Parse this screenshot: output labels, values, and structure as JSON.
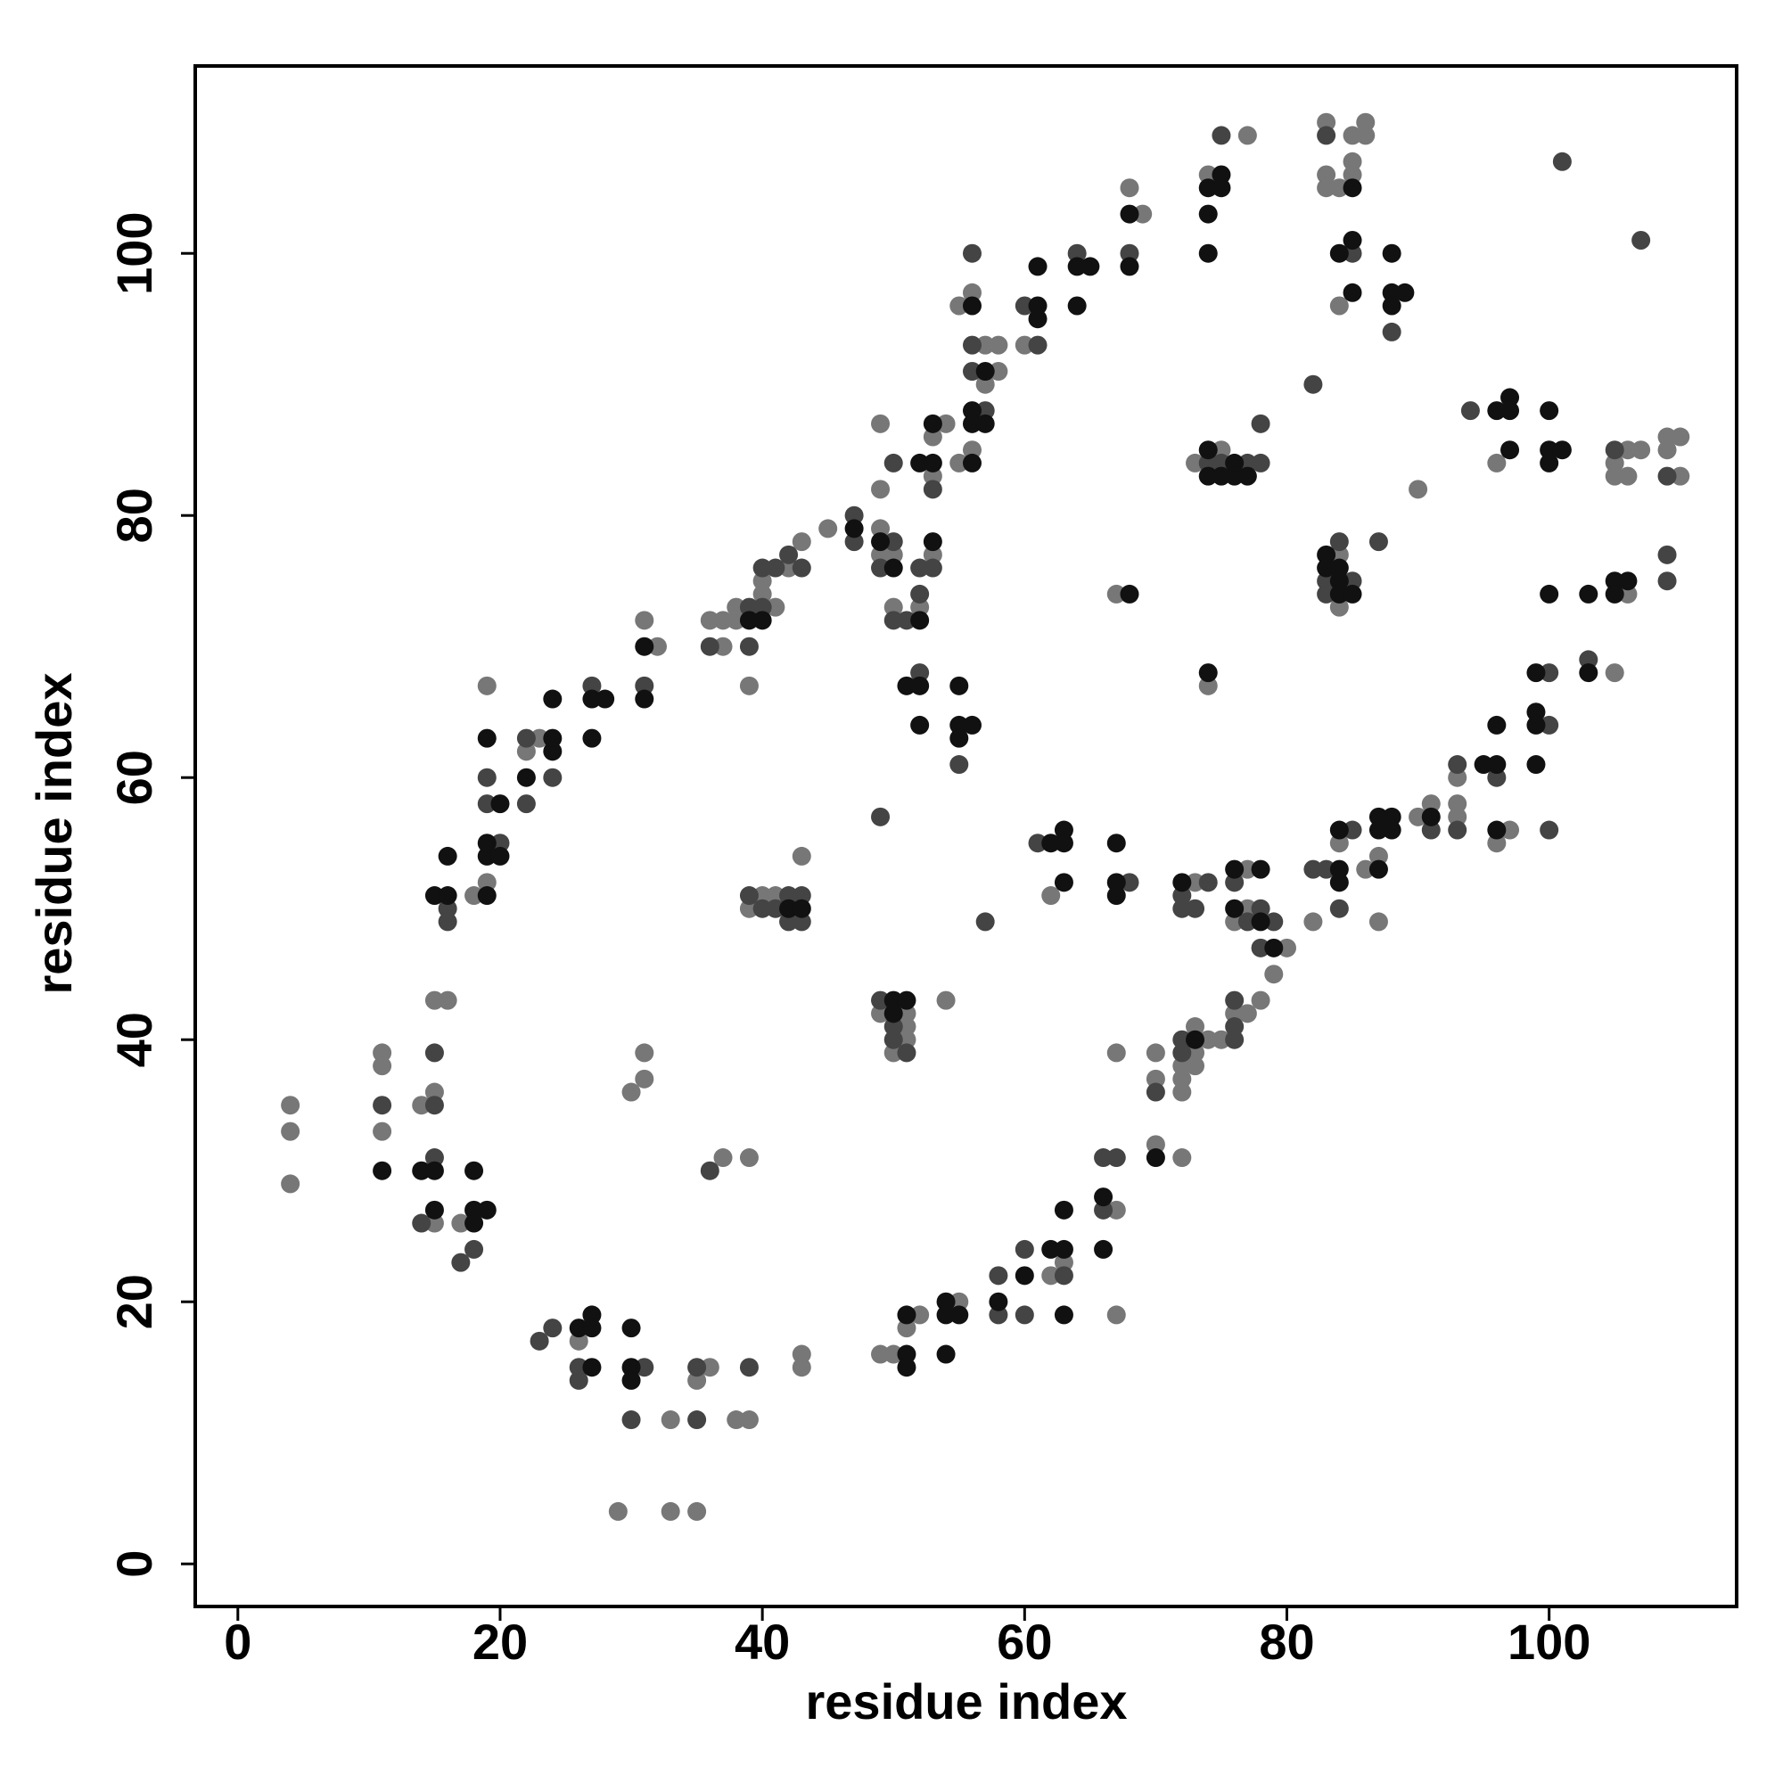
{
  "chart_data": {
    "type": "scatter",
    "x_label": "residue index",
    "y_label": "residue index",
    "xlim": [
      -3.25,
      114.3
    ],
    "ylim": [
      -3.25,
      114.3
    ],
    "xticks": [
      0,
      20,
      40,
      60,
      80,
      100
    ],
    "yticks": [
      0,
      20,
      40,
      60,
      80,
      100
    ],
    "series": [
      {
        "color": "#777777",
        "x": [
          4,
          4,
          4,
          11,
          11,
          11,
          14,
          15,
          15,
          15,
          16,
          17,
          18,
          19,
          19,
          22,
          23,
          31,
          32,
          36,
          37,
          37,
          38,
          38,
          39,
          40,
          40,
          41,
          42,
          43,
          45,
          49,
          49,
          49,
          49,
          50,
          50,
          52,
          53,
          53,
          53,
          54,
          55,
          55,
          56,
          56,
          57,
          57,
          58,
          58,
          60,
          68,
          69,
          74,
          77,
          83,
          83,
          83,
          84,
          85,
          85,
          85,
          86,
          86,
          84,
          73,
          75,
          74,
          67,
          84,
          84,
          90,
          96,
          105,
          105,
          106,
          106,
          107,
          109,
          109,
          110,
          110,
          106,
          105,
          96,
          97,
          93,
          93,
          93,
          91,
          90,
          87,
          86,
          87,
          84,
          82,
          80,
          77,
          77,
          76,
          79,
          78,
          77,
          76,
          75,
          74,
          73,
          73,
          73,
          72,
          72,
          72,
          72,
          73,
          70,
          70,
          70,
          67,
          67,
          67,
          62,
          63,
          62,
          55,
          52,
          51,
          50,
          49,
          54,
          49,
          50,
          51,
          51,
          51,
          39,
          40,
          41,
          43,
          30,
          31,
          31,
          37,
          39,
          26,
          35,
          36,
          33,
          38,
          39,
          43,
          43,
          29,
          33,
          35
        ],
        "values": [
          35,
          33,
          29,
          39,
          38,
          33,
          35,
          36,
          26,
          43,
          43,
          26,
          51,
          52,
          67,
          62,
          63,
          72,
          70,
          72,
          72,
          70,
          73,
          72,
          67,
          74,
          75,
          73,
          76,
          78,
          79,
          87,
          82,
          79,
          77,
          77,
          73,
          73,
          77,
          83,
          86,
          87,
          84,
          96,
          97,
          85,
          93,
          90,
          93,
          91,
          93,
          105,
          103,
          106,
          109,
          110,
          106,
          105,
          105,
          109,
          107,
          106,
          110,
          109,
          96,
          84,
          85,
          67,
          74,
          77,
          73,
          82,
          84,
          84,
          83,
          85,
          83,
          85,
          86,
          85,
          86,
          83,
          74,
          68,
          55,
          56,
          60,
          58,
          57,
          58,
          57,
          54,
          53,
          49,
          55,
          49,
          47,
          53,
          50,
          49,
          45,
          43,
          42,
          42,
          40,
          40,
          41,
          39,
          38,
          38,
          37,
          36,
          31,
          52,
          39,
          37,
          32,
          27,
          19,
          39,
          51,
          23,
          22,
          20,
          19,
          18,
          16,
          16,
          43,
          42,
          39,
          42,
          41,
          40,
          50,
          51,
          51,
          54,
          36,
          39,
          37,
          31,
          31,
          17,
          14,
          15,
          11,
          11,
          11,
          16,
          15,
          4,
          4,
          4
        ]
      },
      {
        "color": "#444444",
        "x": [
          11,
          14,
          15,
          15,
          15,
          17,
          18,
          16,
          16,
          20,
          19,
          19,
          22,
          22,
          24,
          27,
          31,
          36,
          39,
          39,
          40,
          40,
          41,
          42,
          43,
          47,
          47,
          49,
          50,
          50,
          50,
          51,
          52,
          52,
          53,
          53,
          56,
          56,
          56,
          57,
          60,
          61,
          64,
          68,
          75,
          83,
          85,
          88,
          82,
          101,
          107,
          74,
          75,
          77,
          78,
          78,
          83,
          83,
          84,
          85,
          87,
          94,
          105,
          109,
          109,
          109,
          103,
          100,
          100,
          100,
          96,
          93,
          93,
          91,
          85,
          83,
          82,
          84,
          79,
          78,
          78,
          77,
          76,
          76,
          76,
          76,
          72,
          72,
          72,
          72,
          73,
          74,
          70,
          68,
          66,
          67,
          66,
          61,
          57,
          63,
          60,
          60,
          58,
          58,
          49,
          49,
          50,
          50,
          51,
          52,
          55,
          39,
          40,
          41,
          42,
          42,
          43,
          43,
          36,
          23,
          24,
          26,
          26,
          31,
          30,
          35,
          35,
          39
        ],
        "values": [
          35,
          26,
          39,
          35,
          31,
          23,
          24,
          50,
          49,
          55,
          58,
          60,
          58,
          63,
          60,
          67,
          67,
          70,
          73,
          70,
          73,
          76,
          76,
          77,
          76,
          80,
          78,
          76,
          78,
          84,
          72,
          72,
          74,
          76,
          76,
          82,
          100,
          93,
          91,
          88,
          96,
          93,
          100,
          100,
          109,
          109,
          100,
          94,
          90,
          107,
          101,
          84,
          84,
          84,
          84,
          87,
          75,
          74,
          78,
          75,
          78,
          88,
          85,
          83,
          77,
          75,
          69,
          68,
          64,
          56,
          60,
          61,
          56,
          56,
          56,
          53,
          53,
          50,
          49,
          50,
          47,
          49,
          52,
          43,
          41,
          40,
          40,
          39,
          51,
          50,
          50,
          52,
          36,
          52,
          31,
          31,
          27,
          55,
          49,
          22,
          24,
          19,
          22,
          19,
          57,
          43,
          41,
          40,
          39,
          68,
          61,
          51,
          50,
          50,
          51,
          49,
          51,
          49,
          30,
          17,
          18,
          15,
          14,
          15,
          11,
          15,
          11,
          15
        ]
      },
      {
        "color": "#111111",
        "x": [
          11,
          14,
          15,
          15,
          18,
          18,
          18,
          19,
          15,
          16,
          16,
          19,
          19,
          19,
          20,
          20,
          19,
          22,
          24,
          24,
          24,
          27,
          27,
          28,
          31,
          31,
          39,
          40,
          47,
          49,
          50,
          52,
          53,
          52,
          53,
          53,
          56,
          56,
          56,
          56,
          57,
          57,
          61,
          61,
          61,
          64,
          65,
          64,
          68,
          68,
          74,
          74,
          74,
          75,
          75,
          85,
          84,
          85,
          85,
          88,
          88,
          88,
          89,
          74,
          74,
          75,
          76,
          76,
          77,
          74,
          68,
          83,
          83,
          84,
          84,
          84,
          85,
          96,
          97,
          97,
          97,
          100,
          100,
          100,
          101,
          105,
          105,
          106,
          103,
          103,
          100,
          99,
          99,
          99,
          99,
          96,
          96,
          95,
          96,
          91,
          88,
          88,
          87,
          87,
          87,
          84,
          84,
          84,
          79,
          78,
          78,
          76,
          76,
          73,
          72,
          70,
          67,
          67,
          67,
          66,
          66,
          63,
          63,
          62,
          63,
          62,
          63,
          63,
          63,
          60,
          58,
          55,
          54,
          54,
          54,
          51,
          51,
          51,
          50,
          50,
          51,
          51,
          52,
          52,
          55,
          55,
          55,
          56,
          42,
          43,
          26,
          27,
          27,
          27,
          30,
          30,
          30
        ],
        "values": [
          30,
          30,
          30,
          27,
          30,
          27,
          26,
          27,
          51,
          51,
          54,
          51,
          54,
          55,
          54,
          58,
          63,
          60,
          63,
          62,
          66,
          63,
          66,
          66,
          66,
          70,
          72,
          72,
          79,
          78,
          76,
          72,
          78,
          84,
          84,
          87,
          96,
          88,
          87,
          84,
          91,
          87,
          96,
          95,
          99,
          99,
          99,
          96,
          103,
          99,
          105,
          103,
          100,
          106,
          105,
          105,
          100,
          101,
          97,
          100,
          97,
          96,
          97,
          85,
          83,
          83,
          84,
          83,
          83,
          68,
          74,
          77,
          76,
          76,
          75,
          74,
          74,
          88,
          89,
          88,
          85,
          88,
          85,
          84,
          85,
          75,
          74,
          75,
          74,
          68,
          74,
          68,
          65,
          64,
          61,
          64,
          61,
          61,
          56,
          57,
          57,
          56,
          57,
          56,
          53,
          56,
          53,
          52,
          47,
          53,
          49,
          53,
          50,
          40,
          52,
          31,
          55,
          52,
          51,
          28,
          24,
          56,
          55,
          55,
          52,
          24,
          24,
          27,
          19,
          22,
          20,
          19,
          20,
          19,
          16,
          19,
          16,
          15,
          43,
          42,
          43,
          67,
          67,
          64,
          67,
          64,
          63,
          64,
          50,
          50,
          18,
          19,
          18,
          15,
          18,
          15,
          14
        ]
      }
    ]
  }
}
